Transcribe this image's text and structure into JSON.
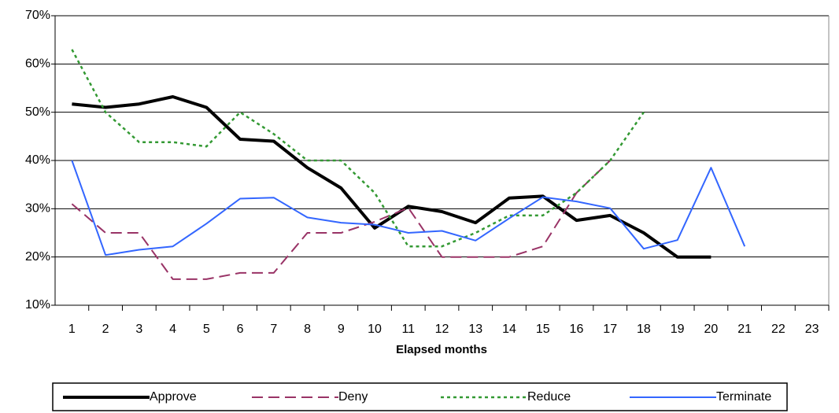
{
  "chart_data": {
    "type": "line",
    "x_label": "Elapsed months",
    "categories": [
      "1",
      "2",
      "3",
      "4",
      "5",
      "6",
      "7",
      "8",
      "9",
      "10",
      "11",
      "12",
      "13",
      "14",
      "15",
      "16",
      "17",
      "18",
      "19",
      "20",
      "21",
      "22",
      "23"
    ],
    "series": [
      {
        "name": "Approve",
        "color": "#000000",
        "width": 4,
        "dash": "solid",
        "values": [
          51.7,
          51,
          51.7,
          53.2,
          51,
          44.4,
          44,
          38.5,
          34.3,
          26,
          30.5,
          29.4,
          27.1,
          32.2,
          32.6,
          27.6,
          28.6,
          25,
          20,
          20,
          null,
          null,
          null
        ]
      },
      {
        "name": "Deny",
        "color": "#993366",
        "width": 2,
        "dash": "dashed",
        "values": [
          31,
          25,
          25,
          15.4,
          15.4,
          16.7,
          16.7,
          25,
          25,
          27.3,
          30.2,
          20,
          20,
          20,
          22.2,
          33.3,
          40,
          null,
          null,
          null,
          null,
          null,
          null
        ]
      },
      {
        "name": "Reduce",
        "color": "#339933",
        "width": 2.5,
        "dash": "dotted",
        "values": [
          63,
          50,
          43.8,
          43.8,
          42.9,
          50,
          45.5,
          40,
          40,
          33.3,
          22.2,
          22.2,
          25,
          28.6,
          28.6,
          33.3,
          40,
          50,
          null,
          null,
          null,
          null,
          null
        ]
      },
      {
        "name": "Terminate",
        "color": "#3366ff",
        "width": 2,
        "dash": "solid",
        "values": [
          40,
          20.4,
          21.5,
          22.2,
          26.9,
          32.1,
          32.3,
          28.2,
          27.1,
          26.7,
          25,
          25.4,
          23.4,
          28,
          32.4,
          31.5,
          30.1,
          21.7,
          23.5,
          38.5,
          22.2,
          null,
          null
        ]
      }
    ],
    "ylim": [
      10,
      70
    ],
    "yticks": [
      {
        "value": 10,
        "label": "10%"
      },
      {
        "value": 20,
        "label": "20%"
      },
      {
        "value": 30,
        "label": "30%"
      },
      {
        "value": 40,
        "label": "40%"
      },
      {
        "value": 50,
        "label": "50%"
      },
      {
        "value": 60,
        "label": "60%"
      },
      {
        "value": 70,
        "label": "70%"
      }
    ],
    "grid": true,
    "legend": "bottom"
  }
}
